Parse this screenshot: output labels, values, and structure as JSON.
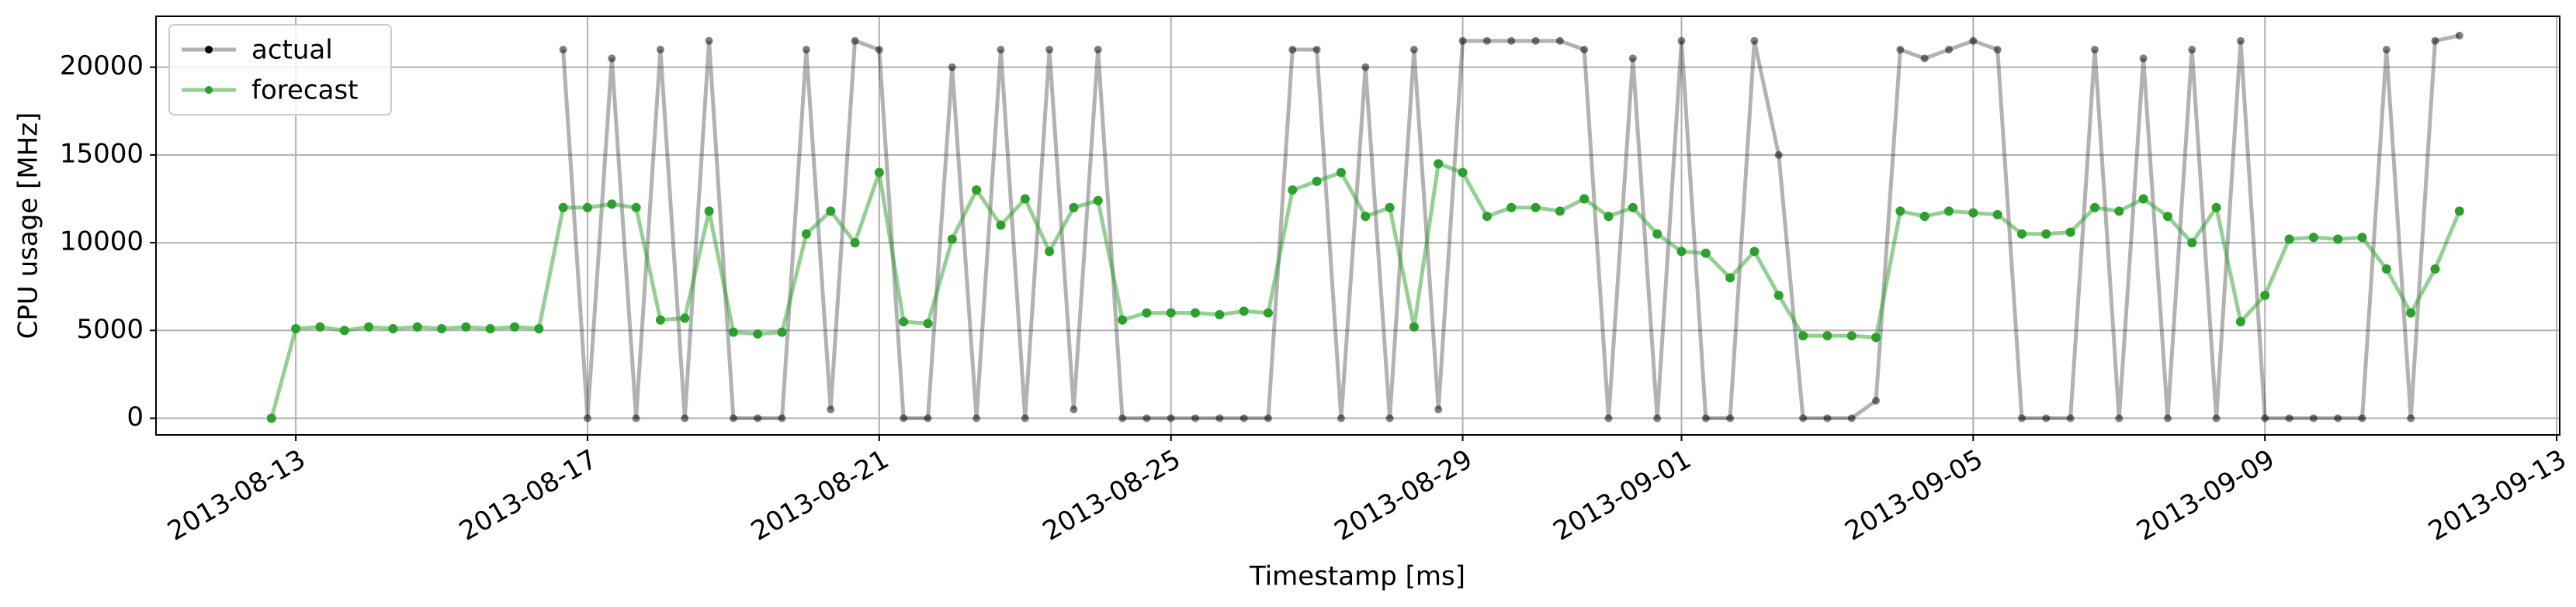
{
  "chart_data": {
    "type": "line",
    "xlabel": "Timestamp [ms]",
    "ylabel": "CPU usage [MHz]",
    "x": [
      "2013-08-12 16:00",
      "2013-08-13 00:00",
      "2013-08-13 08:00",
      "2013-08-13 16:00",
      "2013-08-14 00:00",
      "2013-08-14 08:00",
      "2013-08-14 16:00",
      "2013-08-15 00:00",
      "2013-08-15 08:00",
      "2013-08-15 16:00",
      "2013-08-16 00:00",
      "2013-08-16 08:00",
      "2013-08-16 16:00",
      "2013-08-17 00:00",
      "2013-08-17 08:00",
      "2013-08-17 16:00",
      "2013-08-18 00:00",
      "2013-08-18 08:00",
      "2013-08-18 16:00",
      "2013-08-19 00:00",
      "2013-08-19 08:00",
      "2013-08-19 16:00",
      "2013-08-20 00:00",
      "2013-08-20 08:00",
      "2013-08-20 16:00",
      "2013-08-21 00:00",
      "2013-08-21 08:00",
      "2013-08-21 16:00",
      "2013-08-22 00:00",
      "2013-08-22 08:00",
      "2013-08-22 16:00",
      "2013-08-23 00:00",
      "2013-08-23 08:00",
      "2013-08-23 16:00",
      "2013-08-24 00:00",
      "2013-08-24 08:00",
      "2013-08-24 16:00",
      "2013-08-25 00:00",
      "2013-08-25 08:00",
      "2013-08-25 16:00",
      "2013-08-26 00:00",
      "2013-08-26 08:00",
      "2013-08-26 16:00",
      "2013-08-27 00:00",
      "2013-08-27 08:00",
      "2013-08-27 16:00",
      "2013-08-28 00:00",
      "2013-08-28 08:00",
      "2013-08-28 16:00",
      "2013-08-29 00:00",
      "2013-08-29 08:00",
      "2013-08-29 16:00",
      "2013-08-30 00:00",
      "2013-08-30 08:00",
      "2013-08-30 16:00",
      "2013-08-31 00:00",
      "2013-08-31 08:00",
      "2013-08-31 16:00",
      "2013-09-01 00:00",
      "2013-09-01 08:00",
      "2013-09-01 16:00",
      "2013-09-02 00:00",
      "2013-09-02 08:00",
      "2013-09-02 16:00",
      "2013-09-03 00:00",
      "2013-09-03 08:00",
      "2013-09-03 16:00",
      "2013-09-04 00:00",
      "2013-09-04 08:00",
      "2013-09-04 16:00",
      "2013-09-05 00:00",
      "2013-09-05 08:00",
      "2013-09-05 16:00",
      "2013-09-06 00:00",
      "2013-09-06 08:00",
      "2013-09-06 16:00",
      "2013-09-07 00:00",
      "2013-09-07 08:00",
      "2013-09-07 16:00",
      "2013-09-08 00:00",
      "2013-09-08 08:00",
      "2013-09-08 16:00",
      "2013-09-09 00:00",
      "2013-09-09 08:00",
      "2013-09-09 16:00",
      "2013-09-10 00:00",
      "2013-09-10 08:00",
      "2013-09-10 16:00",
      "2013-09-11 00:00",
      "2013-09-11 08:00",
      "2013-09-11 16:00"
    ],
    "series": [
      {
        "name": "actual",
        "color": "#000000",
        "values": [
          null,
          null,
          null,
          null,
          null,
          null,
          null,
          null,
          null,
          null,
          null,
          null,
          21000,
          0,
          20500,
          0,
          21000,
          0,
          21500,
          0,
          0,
          0,
          21000,
          500,
          21500,
          21000,
          0,
          0,
          20000,
          0,
          21000,
          0,
          21000,
          500,
          21000,
          0,
          0,
          0,
          0,
          0,
          0,
          0,
          21000,
          21000,
          0,
          20000,
          0,
          21000,
          500,
          21500,
          21500,
          21500,
          21500,
          21500,
          21000,
          0,
          20500,
          0,
          21500,
          0,
          0,
          21500,
          15000,
          0,
          0,
          0,
          1000,
          21000,
          20500,
          21000,
          21500,
          21000,
          0,
          0,
          0,
          21000,
          0,
          20500,
          0,
          21000,
          0,
          21500,
          0,
          0,
          0,
          0,
          0,
          21000,
          0,
          21500,
          21800
        ]
      },
      {
        "name": "forecast",
        "color": "#2ca02c",
        "values": [
          0,
          5100,
          5200,
          5000,
          5200,
          5100,
          5200,
          5100,
          5200,
          5100,
          5200,
          5100,
          12000,
          12000,
          12200,
          12000,
          5600,
          5700,
          11800,
          4900,
          4800,
          4900,
          10500,
          11800,
          10000,
          14000,
          5500,
          5400,
          10200,
          13000,
          11000,
          12500,
          9500,
          12000,
          12400,
          5600,
          6000,
          6000,
          6000,
          5900,
          6100,
          6000,
          13000,
          13500,
          14000,
          11500,
          12000,
          5200,
          14500,
          14000,
          11500,
          12000,
          12000,
          11800,
          12500,
          11500,
          12000,
          10500,
          9500,
          9400,
          8000,
          9500,
          7000,
          4700,
          4700,
          4700,
          4600,
          11800,
          11500,
          11800,
          11700,
          11600,
          10500,
          10500,
          10600,
          12000,
          11800,
          12500,
          11500,
          10000,
          12000,
          5500,
          7000,
          10200,
          10300,
          10200,
          10300,
          8500,
          6000,
          8500,
          11800
        ]
      }
    ],
    "xlim": [
      "2013-08-11 02:00",
      "2013-09-13 01:00"
    ],
    "xticks": [
      "2013-08-13",
      "2013-08-17",
      "2013-08-21",
      "2013-08-25",
      "2013-08-29",
      "2013-09-01",
      "2013-09-05",
      "2013-09-09",
      "2013-09-13"
    ],
    "ylim": [
      -950,
      22900
    ],
    "yticks": [
      0,
      5000,
      10000,
      15000,
      20000
    ],
    "grid": true,
    "legend": "upper left"
  }
}
